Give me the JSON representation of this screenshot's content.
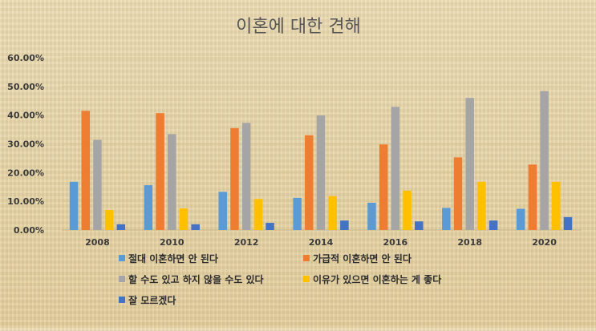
{
  "chart_data": {
    "type": "bar",
    "title": "이혼에 대한 견해",
    "xlabel": "",
    "ylabel": "",
    "categories": [
      "2008",
      "2010",
      "2012",
      "2014",
      "2016",
      "2018",
      "2020"
    ],
    "ylim": [
      0,
      60
    ],
    "yticks": [
      "0.00%",
      "10.00%",
      "20.00%",
      "30.00%",
      "40.00%",
      "50.00%",
      "60.00%"
    ],
    "grid": true,
    "legend_position": "bottom",
    "series": [
      {
        "name": "절대 이혼하면 안 된다",
        "color": "#5b9bd5",
        "values": [
          16.8,
          15.6,
          13.3,
          11.2,
          9.5,
          7.7,
          7.4
        ]
      },
      {
        "name": "가급적 이혼하면 안 된다",
        "color": "#ed7d31",
        "values": [
          41.5,
          40.7,
          35.5,
          33.0,
          29.8,
          25.3,
          22.8
        ]
      },
      {
        "name": "할 수도 있고 하지 않을 수도 있다",
        "color": "#a5a5a5",
        "values": [
          31.4,
          33.4,
          37.3,
          39.9,
          42.9,
          46.0,
          48.4
        ]
      },
      {
        "name": "이유가 있으면 이혼하는 게 좋다",
        "color": "#ffc000",
        "values": [
          7.0,
          7.5,
          10.8,
          11.8,
          13.7,
          16.8,
          16.8
        ]
      },
      {
        "name": "잘 모르겠다",
        "color": "#4472c4",
        "values": [
          2.0,
          2.0,
          2.5,
          3.3,
          3.0,
          3.3,
          4.5
        ]
      }
    ]
  }
}
